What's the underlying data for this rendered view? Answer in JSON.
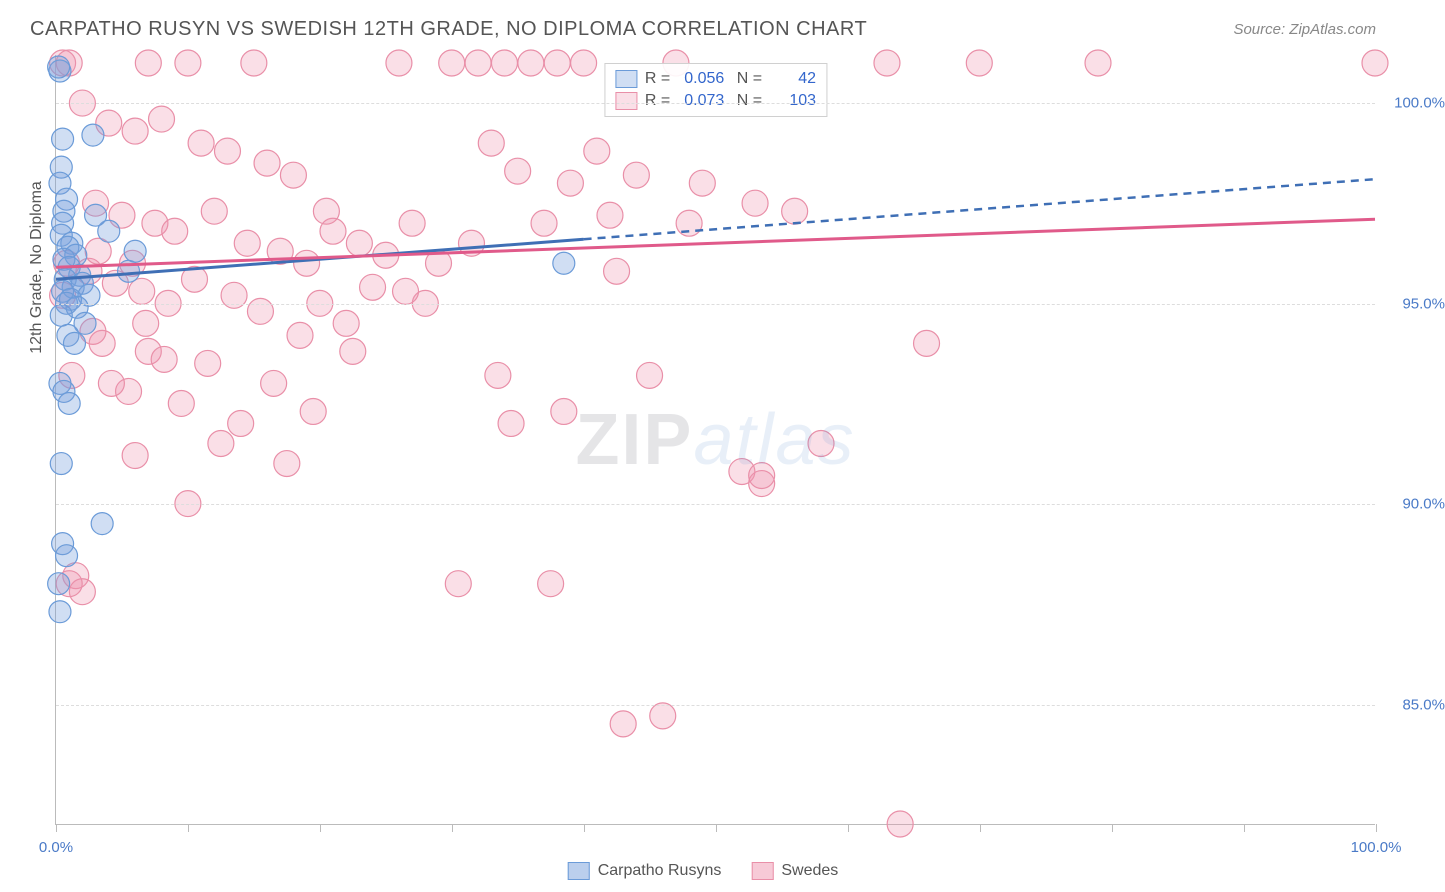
{
  "title": "CARPATHO RUSYN VS SWEDISH 12TH GRADE, NO DIPLOMA CORRELATION CHART",
  "source_label": "Source: ZipAtlas.com",
  "y_axis_label": "12th Grade, No Diploma",
  "watermark": {
    "part1": "ZIP",
    "part2": "atlas"
  },
  "chart": {
    "type": "scatter",
    "xlim": [
      0,
      100
    ],
    "ylim": [
      82,
      101.2
    ],
    "x_ticks": [
      0,
      10,
      20,
      30,
      40,
      50,
      60,
      70,
      80,
      90,
      100
    ],
    "x_tick_labels": {
      "0": "0.0%",
      "100": "100.0%"
    },
    "y_ticks": [
      85,
      90,
      95,
      100
    ],
    "y_tick_labels": [
      "85.0%",
      "90.0%",
      "95.0%",
      "100.0%"
    ],
    "grid_color": "#dddddd",
    "axis_color": "#bbbbbb",
    "background_color": "#ffffff",
    "tick_label_color": "#4a7ac7",
    "series": [
      {
        "name": "Carpatho Rusyns",
        "color_fill": "rgba(120,160,220,0.35)",
        "color_stroke": "#6b9bd8",
        "r_value": "0.056",
        "n_value": "42",
        "marker_radius": 11,
        "regression": {
          "x1": 0,
          "y1": 95.6,
          "x2": 40,
          "y2": 96.6,
          "dashed_to_x": 100,
          "dashed_to_y": 98.1,
          "stroke": "#3f6fb5",
          "width": 3
        },
        "points": [
          [
            0.3,
            100.8
          ],
          [
            0.2,
            100.9
          ],
          [
            0.5,
            99.1
          ],
          [
            0.4,
            98.4
          ],
          [
            0.3,
            98.0
          ],
          [
            0.8,
            97.6
          ],
          [
            0.6,
            97.3
          ],
          [
            0.5,
            97.0
          ],
          [
            0.4,
            96.7
          ],
          [
            1.2,
            96.5
          ],
          [
            0.9,
            96.4
          ],
          [
            1.5,
            96.2
          ],
          [
            0.6,
            96.1
          ],
          [
            1.0,
            95.9
          ],
          [
            1.8,
            95.7
          ],
          [
            0.7,
            95.6
          ],
          [
            2.0,
            95.5
          ],
          [
            1.3,
            95.4
          ],
          [
            0.5,
            95.3
          ],
          [
            2.5,
            95.2
          ],
          [
            1.1,
            95.1
          ],
          [
            0.8,
            95.0
          ],
          [
            1.6,
            94.9
          ],
          [
            0.4,
            94.7
          ],
          [
            2.2,
            94.5
          ],
          [
            0.9,
            94.2
          ],
          [
            1.4,
            94.0
          ],
          [
            0.3,
            93.0
          ],
          [
            0.6,
            92.8
          ],
          [
            1.0,
            92.5
          ],
          [
            0.4,
            91.0
          ],
          [
            3.5,
            89.5
          ],
          [
            0.5,
            89.0
          ],
          [
            0.8,
            88.7
          ],
          [
            0.3,
            87.3
          ],
          [
            2.8,
            99.2
          ],
          [
            38.5,
            96.0
          ],
          [
            4.0,
            96.8
          ],
          [
            5.5,
            95.8
          ],
          [
            3.0,
            97.2
          ],
          [
            6.0,
            96.3
          ],
          [
            0.2,
            88.0
          ]
        ]
      },
      {
        "name": "Swedes",
        "color_fill": "rgba(240,150,175,0.30)",
        "color_stroke": "#e98fa8",
        "r_value": "0.073",
        "n_value": "103",
        "marker_radius": 13,
        "regression": {
          "x1": 0,
          "y1": 95.9,
          "x2": 100,
          "y2": 97.1,
          "stroke": "#e05a8a",
          "width": 3
        },
        "points": [
          [
            0.5,
            101.0
          ],
          [
            1.0,
            101.0
          ],
          [
            7.0,
            101.0
          ],
          [
            10.0,
            101.0
          ],
          [
            15.0,
            101.0
          ],
          [
            26.0,
            101.0
          ],
          [
            30.0,
            101.0
          ],
          [
            32.0,
            101.0
          ],
          [
            34.0,
            101.0
          ],
          [
            36.0,
            101.0
          ],
          [
            38.0,
            101.0
          ],
          [
            40.0,
            101.0
          ],
          [
            47.0,
            101.0
          ],
          [
            63.0,
            101.0
          ],
          [
            70.0,
            101.0
          ],
          [
            79.0,
            101.0
          ],
          [
            100.0,
            101.0
          ],
          [
            2.0,
            100.0
          ],
          [
            4.0,
            99.5
          ],
          [
            6.0,
            99.3
          ],
          [
            8.0,
            99.6
          ],
          [
            11.0,
            99.0
          ],
          [
            13.0,
            98.8
          ],
          [
            16.0,
            98.5
          ],
          [
            18.0,
            98.2
          ],
          [
            33.0,
            99.0
          ],
          [
            35.0,
            98.3
          ],
          [
            39.0,
            98.0
          ],
          [
            41.0,
            98.8
          ],
          [
            44.0,
            98.2
          ],
          [
            49.0,
            98.0
          ],
          [
            3.0,
            97.5
          ],
          [
            5.0,
            97.2
          ],
          [
            7.5,
            97.0
          ],
          [
            9.0,
            96.8
          ],
          [
            12.0,
            97.3
          ],
          [
            14.5,
            96.5
          ],
          [
            17.0,
            96.3
          ],
          [
            19.0,
            96.0
          ],
          [
            21.0,
            96.8
          ],
          [
            23.0,
            96.5
          ],
          [
            25.0,
            96.2
          ],
          [
            27.0,
            97.0
          ],
          [
            29.0,
            96.0
          ],
          [
            37.0,
            97.0
          ],
          [
            42.0,
            97.2
          ],
          [
            53.0,
            97.5
          ],
          [
            2.5,
            95.8
          ],
          [
            4.5,
            95.5
          ],
          [
            6.5,
            95.3
          ],
          [
            8.5,
            95.0
          ],
          [
            10.5,
            95.6
          ],
          [
            13.5,
            95.2
          ],
          [
            15.5,
            94.8
          ],
          [
            20.0,
            95.0
          ],
          [
            22.0,
            94.5
          ],
          [
            24.0,
            95.4
          ],
          [
            28.0,
            95.0
          ],
          [
            3.5,
            94.0
          ],
          [
            7.0,
            93.8
          ],
          [
            11.5,
            93.5
          ],
          [
            16.5,
            93.0
          ],
          [
            18.5,
            94.2
          ],
          [
            45.0,
            93.2
          ],
          [
            5.5,
            92.8
          ],
          [
            9.5,
            92.5
          ],
          [
            14.0,
            92.0
          ],
          [
            19.5,
            92.3
          ],
          [
            34.5,
            92.0
          ],
          [
            38.5,
            92.3
          ],
          [
            12.5,
            91.5
          ],
          [
            17.5,
            91.0
          ],
          [
            52.0,
            90.8
          ],
          [
            53.5,
            90.5
          ],
          [
            58.0,
            91.5
          ],
          [
            66.0,
            94.0
          ],
          [
            6.0,
            91.2
          ],
          [
            10.0,
            90.0
          ],
          [
            30.5,
            88.0
          ],
          [
            37.5,
            88.0
          ],
          [
            43.0,
            84.5
          ],
          [
            46.0,
            84.7
          ],
          [
            56.0,
            97.3
          ],
          [
            53.5,
            90.7
          ],
          [
            1.5,
            88.2
          ],
          [
            2.0,
            87.8
          ],
          [
            1.2,
            93.2
          ],
          [
            2.8,
            94.3
          ],
          [
            4.2,
            93.0
          ],
          [
            6.8,
            94.5
          ],
          [
            8.2,
            93.6
          ],
          [
            3.2,
            96.3
          ],
          [
            5.8,
            96.0
          ],
          [
            48.0,
            97.0
          ],
          [
            42.5,
            95.8
          ],
          [
            31.5,
            96.5
          ],
          [
            26.5,
            95.3
          ],
          [
            20.5,
            97.3
          ],
          [
            22.5,
            93.8
          ],
          [
            33.5,
            93.2
          ],
          [
            64.0,
            82.0
          ],
          [
            1.0,
            88.0
          ],
          [
            0.5,
            95.2
          ],
          [
            0.8,
            96.0
          ]
        ]
      }
    ]
  },
  "bottom_legend": [
    {
      "label": "Carpatho Rusyns",
      "fill": "rgba(120,160,220,0.5)",
      "stroke": "#6b9bd8"
    },
    {
      "label": "Swedes",
      "fill": "rgba(240,150,175,0.5)",
      "stroke": "#e98fa8"
    }
  ]
}
